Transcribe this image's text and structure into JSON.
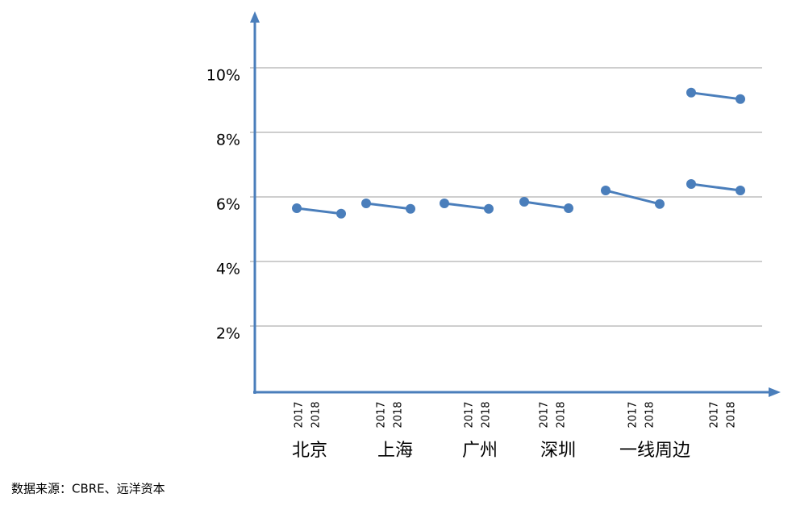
{
  "chart_data": {
    "type": "paired-line",
    "categories": [
      "北京",
      "上海",
      "广州",
      "深圳",
      "一线周边",
      null
    ],
    "sub_categories": [
      "2017",
      "2018"
    ],
    "series": [
      {
        "color": "#4a7ebb",
        "values": [
          [
            5.65,
            5.48
          ],
          [
            5.8,
            5.63
          ],
          [
            5.8,
            5.63
          ],
          [
            5.85,
            5.65
          ],
          [
            6.2,
            5.78
          ],
          [
            6.4,
            6.2
          ]
        ]
      },
      {
        "color": "#4a7ebb",
        "values": [
          null,
          null,
          null,
          null,
          null,
          [
            9.23,
            9.03
          ]
        ]
      }
    ],
    "ylim": [
      0,
      11.5
    ],
    "yticks": [
      {
        "value": 2,
        "label": "2%"
      },
      {
        "value": 4,
        "label": "4%"
      },
      {
        "value": 6,
        "label": "6%"
      },
      {
        "value": 8,
        "label": "8%"
      },
      {
        "value": 10,
        "label": "10%"
      }
    ],
    "grid": true,
    "source": "数据来源：CBRE、远洋资本"
  }
}
